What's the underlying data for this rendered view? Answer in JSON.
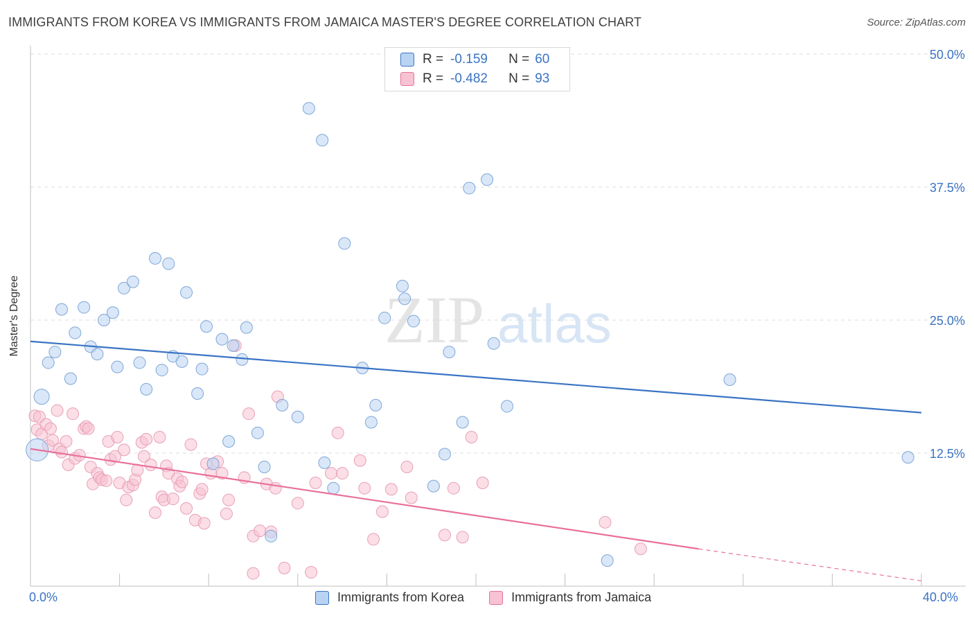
{
  "title": "IMMIGRANTS FROM KOREA VS IMMIGRANTS FROM JAMAICA MASTER'S DEGREE CORRELATION CHART",
  "source": "Source: ZipAtlas.com",
  "watermark": {
    "zip": "ZIP",
    "atlas": "atlas"
  },
  "colors": {
    "blue": "#3a73c4",
    "pink": "#e8709a",
    "blue_fill": "#b9d3f3",
    "pink_fill": "#f7c2d2"
  },
  "legend_top": {
    "rows": [
      {
        "r_label": "R =",
        "r_value": "-0.159",
        "n_label": "N =",
        "n_value": "60"
      },
      {
        "r_label": "R =",
        "r_value": "-0.482",
        "n_label": "N =",
        "n_value": "93"
      }
    ]
  },
  "legend_bottom": {
    "korea": "Immigrants from Korea",
    "jamaica": "Immigrants from Jamaica"
  },
  "chart_data": {
    "type": "scatter",
    "ylabel": "Master's Degree",
    "xlim": [
      0,
      40
    ],
    "ylim": [
      0,
      50
    ],
    "x_tick_labels": [
      "0.0%",
      "40.0%"
    ],
    "y_ticks": [
      12.5,
      25.0,
      37.5,
      50.0
    ],
    "y_tick_labels": [
      "12.5%",
      "25.0%",
      "37.5%",
      "50.0%"
    ],
    "series": [
      {
        "name": "Immigrants from Korea",
        "color": "#3a73c4",
        "trend": {
          "x": [
            0,
            40
          ],
          "y": [
            23.0,
            16.3
          ]
        },
        "points": [
          [
            0.3,
            12.8
          ],
          [
            0.5,
            17.8
          ],
          [
            0.8,
            21.0
          ],
          [
            1.1,
            22.0
          ],
          [
            1.4,
            26.0
          ],
          [
            1.8,
            19.5
          ],
          [
            2.0,
            23.8
          ],
          [
            2.4,
            26.2
          ],
          [
            2.7,
            22.5
          ],
          [
            3.0,
            21.8
          ],
          [
            3.3,
            25.0
          ],
          [
            3.7,
            25.7
          ],
          [
            3.9,
            20.6
          ],
          [
            4.2,
            28.0
          ],
          [
            4.6,
            28.6
          ],
          [
            4.9,
            21.0
          ],
          [
            5.2,
            18.5
          ],
          [
            5.6,
            30.8
          ],
          [
            5.9,
            20.3
          ],
          [
            6.2,
            30.3
          ],
          [
            6.4,
            21.6
          ],
          [
            6.8,
            21.1
          ],
          [
            7.0,
            27.6
          ],
          [
            7.5,
            18.1
          ],
          [
            7.7,
            20.4
          ],
          [
            7.9,
            24.4
          ],
          [
            8.2,
            11.5
          ],
          [
            8.6,
            23.2
          ],
          [
            8.9,
            13.6
          ],
          [
            9.1,
            22.6
          ],
          [
            9.5,
            21.3
          ],
          [
            9.7,
            24.3
          ],
          [
            10.2,
            14.4
          ],
          [
            10.5,
            11.2
          ],
          [
            10.8,
            4.7
          ],
          [
            11.3,
            17.0
          ],
          [
            12.0,
            15.9
          ],
          [
            12.5,
            44.9
          ],
          [
            13.1,
            41.9
          ],
          [
            13.2,
            11.6
          ],
          [
            13.6,
            9.2
          ],
          [
            14.1,
            32.2
          ],
          [
            14.9,
            20.5
          ],
          [
            15.3,
            15.4
          ],
          [
            15.5,
            17.0
          ],
          [
            15.9,
            25.2
          ],
          [
            16.7,
            28.2
          ],
          [
            16.8,
            27.0
          ],
          [
            17.2,
            24.9
          ],
          [
            18.1,
            9.4
          ],
          [
            18.6,
            12.4
          ],
          [
            18.8,
            22.0
          ],
          [
            19.4,
            15.4
          ],
          [
            19.7,
            37.4
          ],
          [
            20.5,
            38.2
          ],
          [
            20.8,
            22.8
          ],
          [
            21.4,
            16.9
          ],
          [
            25.9,
            2.4
          ],
          [
            31.4,
            19.4
          ],
          [
            39.4,
            12.1
          ]
        ]
      },
      {
        "name": "Immigrants from Jamaica",
        "color": "#e8709a",
        "trend": {
          "x": [
            0,
            30.0
          ],
          "y": [
            12.9,
            3.5
          ]
        },
        "trend_dashed": {
          "x": [
            30.0,
            40
          ],
          "y": [
            3.5,
            0.5
          ]
        },
        "points": [
          [
            0.2,
            16.0
          ],
          [
            0.3,
            14.7
          ],
          [
            0.4,
            15.9
          ],
          [
            0.5,
            14.3
          ],
          [
            0.7,
            15.2
          ],
          [
            0.8,
            13.2
          ],
          [
            0.9,
            14.8
          ],
          [
            1.0,
            13.7
          ],
          [
            1.2,
            16.5
          ],
          [
            1.3,
            12.9
          ],
          [
            1.4,
            12.6
          ],
          [
            1.6,
            13.6
          ],
          [
            1.7,
            11.4
          ],
          [
            1.9,
            16.2
          ],
          [
            2.0,
            12.0
          ],
          [
            2.2,
            12.3
          ],
          [
            2.4,
            14.8
          ],
          [
            2.5,
            15.0
          ],
          [
            2.6,
            14.8
          ],
          [
            2.7,
            11.2
          ],
          [
            2.8,
            9.6
          ],
          [
            3.0,
            10.6
          ],
          [
            3.1,
            10.2
          ],
          [
            3.2,
            10.0
          ],
          [
            3.4,
            9.9
          ],
          [
            3.5,
            13.6
          ],
          [
            3.6,
            11.9
          ],
          [
            3.8,
            12.2
          ],
          [
            3.9,
            14.0
          ],
          [
            4.0,
            9.7
          ],
          [
            4.2,
            12.8
          ],
          [
            4.3,
            8.1
          ],
          [
            4.4,
            9.3
          ],
          [
            4.6,
            9.5
          ],
          [
            4.7,
            10.0
          ],
          [
            4.8,
            10.9
          ],
          [
            5.0,
            13.5
          ],
          [
            5.1,
            12.2
          ],
          [
            5.2,
            13.8
          ],
          [
            5.4,
            11.4
          ],
          [
            5.6,
            6.9
          ],
          [
            5.8,
            14.0
          ],
          [
            5.9,
            8.4
          ],
          [
            6.0,
            8.1
          ],
          [
            6.1,
            11.3
          ],
          [
            6.2,
            10.6
          ],
          [
            6.4,
            8.2
          ],
          [
            6.6,
            10.1
          ],
          [
            6.7,
            9.4
          ],
          [
            6.8,
            9.8
          ],
          [
            7.0,
            7.3
          ],
          [
            7.2,
            13.3
          ],
          [
            7.4,
            6.2
          ],
          [
            7.6,
            8.7
          ],
          [
            7.7,
            9.1
          ],
          [
            7.8,
            5.9
          ],
          [
            7.9,
            11.5
          ],
          [
            8.1,
            10.6
          ],
          [
            8.4,
            11.7
          ],
          [
            8.6,
            10.6
          ],
          [
            8.8,
            6.8
          ],
          [
            8.9,
            8.1
          ],
          [
            9.2,
            22.6
          ],
          [
            9.6,
            10.2
          ],
          [
            9.8,
            16.2
          ],
          [
            10.0,
            1.2
          ],
          [
            10.0,
            4.7
          ],
          [
            10.3,
            5.2
          ],
          [
            10.6,
            9.6
          ],
          [
            10.8,
            5.1
          ],
          [
            11.0,
            9.2
          ],
          [
            11.1,
            17.8
          ],
          [
            11.4,
            1.7
          ],
          [
            12.0,
            7.8
          ],
          [
            12.6,
            1.3
          ],
          [
            12.8,
            9.7
          ],
          [
            13.5,
            10.6
          ],
          [
            13.8,
            14.4
          ],
          [
            14.0,
            10.6
          ],
          [
            14.8,
            11.8
          ],
          [
            15.0,
            9.2
          ],
          [
            15.4,
            4.4
          ],
          [
            15.8,
            7.0
          ],
          [
            16.2,
            9.1
          ],
          [
            16.9,
            11.2
          ],
          [
            17.1,
            8.3
          ],
          [
            18.6,
            4.8
          ],
          [
            19.0,
            9.2
          ],
          [
            19.4,
            4.6
          ],
          [
            19.8,
            14.0
          ],
          [
            20.3,
            9.7
          ],
          [
            25.8,
            6.0
          ],
          [
            27.4,
            3.5
          ]
        ]
      }
    ]
  }
}
